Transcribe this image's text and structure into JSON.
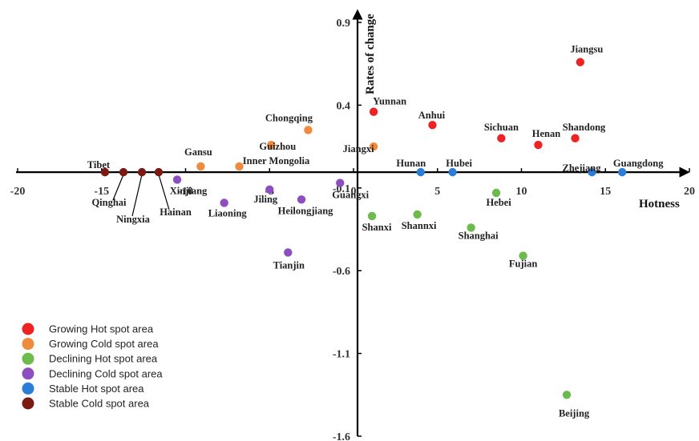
{
  "chart_data": {
    "type": "scatter",
    "xlabel": "Hotness",
    "ylabel": "Rates of change",
    "xlim": [
      -20,
      20
    ],
    "ylim": [
      -1.6,
      0.9
    ],
    "xticks": [
      "-20",
      "-15",
      "-10",
      "-5",
      "0",
      "5",
      "10",
      "15",
      "20"
    ],
    "yticks": [
      "0.9",
      "0.4",
      "-0.1",
      "-0.6",
      "-1.1",
      "-1.6"
    ],
    "legend_position": "bottom-left",
    "series": [
      {
        "name": "Growing Hot spot area",
        "color": "#ee2222",
        "points": [
          {
            "label": "Jiangsu",
            "x": 13.5,
            "y": 0.66
          },
          {
            "label": "Yunnan",
            "x": 1.2,
            "y": 0.36
          },
          {
            "label": "Anhui",
            "x": 4.7,
            "y": 0.28
          },
          {
            "label": "Sichuan",
            "x": 8.8,
            "y": 0.2
          },
          {
            "label": "Henan",
            "x": 11.0,
            "y": 0.16
          },
          {
            "label": "Shandong",
            "x": 13.2,
            "y": 0.2
          }
        ]
      },
      {
        "name": "Growing Cold spot area",
        "color": "#f08a3c",
        "points": [
          {
            "label": "Chongqing",
            "x": -2.7,
            "y": 0.25
          },
          {
            "label": "Guizhou",
            "x": -4.9,
            "y": 0.16
          },
          {
            "label": "Jiangxi",
            "x": 1.2,
            "y": 0.15
          },
          {
            "label": "Gansu",
            "x": -9.1,
            "y": 0.03
          },
          {
            "label": "Inner Mongolia",
            "x": -6.8,
            "y": 0.03
          }
        ]
      },
      {
        "name": "Declining Hot spot area",
        "color": "#6cbb4c",
        "points": [
          {
            "label": "Hebei",
            "x": 8.5,
            "y": -0.13
          },
          {
            "label": "Shanxi",
            "x": 1.1,
            "y": -0.27
          },
          {
            "label": "Shannxi",
            "x": 3.8,
            "y": -0.26
          },
          {
            "label": "Shanghai",
            "x": 7.0,
            "y": -0.34
          },
          {
            "label": "Fujian",
            "x": 10.1,
            "y": -0.51
          },
          {
            "label": "Beijing",
            "x": 12.7,
            "y": -1.35
          }
        ]
      },
      {
        "name": "Declining Cold spot area",
        "color": "#8d4fc0",
        "points": [
          {
            "label": "Xinjiang",
            "x": -10.5,
            "y": -0.05
          },
          {
            "label": "Jiling",
            "x": -5.0,
            "y": -0.11
          },
          {
            "label": "Guangxi",
            "x": -0.8,
            "y": -0.07
          },
          {
            "label": "Liaoning",
            "x": -7.7,
            "y": -0.19
          },
          {
            "label": "Heilongjiang",
            "x": -3.1,
            "y": -0.17
          },
          {
            "label": "Tianjin",
            "x": -3.9,
            "y": -0.49
          }
        ]
      },
      {
        "name": "Stable Hot spot area",
        "color": "#2a7ed8",
        "points": [
          {
            "label": "Hunan",
            "x": 4.0,
            "y": 0.0
          },
          {
            "label": "Hubei",
            "x": 5.9,
            "y": 0.0
          },
          {
            "label": "Zhejiang",
            "x": 14.2,
            "y": 0.0
          },
          {
            "label": "Guangdong",
            "x": 16.0,
            "y": 0.0
          }
        ]
      },
      {
        "name": "Stable Cold spot area",
        "color": "#7a1a12",
        "points": [
          {
            "label": "Tibet",
            "x": -14.8,
            "y": 0.0
          },
          {
            "label": "Qinghai",
            "x": -13.7,
            "y": 0.0
          },
          {
            "label": "Ningxia",
            "x": -12.6,
            "y": 0.0
          },
          {
            "label": "Hainan",
            "x": -11.6,
            "y": 0.0
          }
        ]
      }
    ]
  }
}
